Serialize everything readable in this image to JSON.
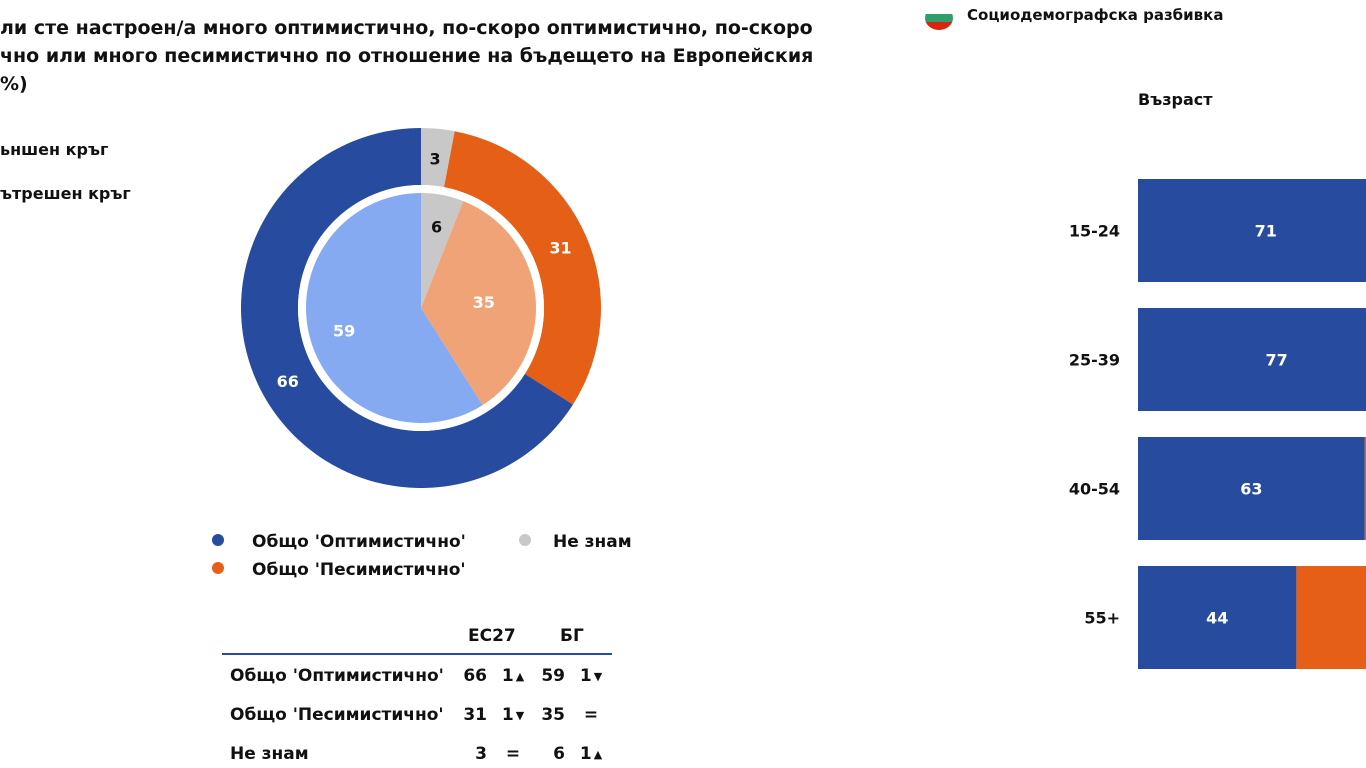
{
  "title": {
    "lines": [
      "ли сте настроен/а много оптимистично, по-скоро оптимистично, по-скоро",
      "чно или много песимистично по отношение на бъдещето на Европейския",
      "%)"
    ]
  },
  "ring_labels": {
    "outer": "ьншен кръг",
    "inner": "ътрешен кръг"
  },
  "legend": {
    "optimistic": "Общо 'Оптимистично'",
    "pessimistic": "Общо 'Песимистично'",
    "dont_know": "Не знам"
  },
  "colors": {
    "optimistic_outer": "#274B9F",
    "pessimistic_outer": "#E55F17",
    "dont_know_outer": "#C8C8C8",
    "optimistic_inner": "#86AAF2",
    "pessimistic_inner": "#F0A376",
    "dont_know_inner": "#C8C8C8"
  },
  "chart_data": [
    {
      "type": "pie",
      "variant": "double-donut",
      "categories": [
        "Общо 'Оптимистично'",
        "Общо 'Песимистично'",
        "Не знам"
      ],
      "series": [
        {
          "ring": "outer",
          "values": [
            66,
            31,
            3
          ]
        },
        {
          "ring": "inner",
          "values": [
            59,
            35,
            6
          ]
        }
      ]
    },
    {
      "type": "table",
      "columns": [
        "ЕС27",
        "БГ"
      ],
      "rows": [
        {
          "label": "Общо 'Оптимистично'",
          "eu_value": "66",
          "eu_change": "1",
          "eu_dir": "up",
          "bg_value": "59",
          "bg_change": "1",
          "bg_dir": "down"
        },
        {
          "label": "Общо 'Песимистично'",
          "eu_value": "31",
          "eu_change": "1",
          "eu_dir": "down",
          "bg_value": "35",
          "bg_change": "=",
          "bg_dir": ""
        },
        {
          "label": "Не знам",
          "eu_value": "3",
          "eu_change": "=",
          "eu_dir": "",
          "bg_value": "6",
          "bg_change": "1",
          "bg_dir": "up"
        }
      ]
    },
    {
      "type": "bar",
      "orientation": "horizontal",
      "stacked": true,
      "group_title": "Възраст",
      "categories": [
        "15-24",
        "25-39",
        "40-54",
        "55+"
      ],
      "series": [
        {
          "values": [
            71,
            77,
            63,
            44
          ]
        },
        {
          "values": [
            null,
            null,
            null,
            null
          ]
        }
      ]
    }
  ],
  "breakdown": {
    "title": "Социодемографска разбивка",
    "flag_colors": [
      "#FFFFFF",
      "#2E9E6B",
      "#D62612"
    ]
  }
}
